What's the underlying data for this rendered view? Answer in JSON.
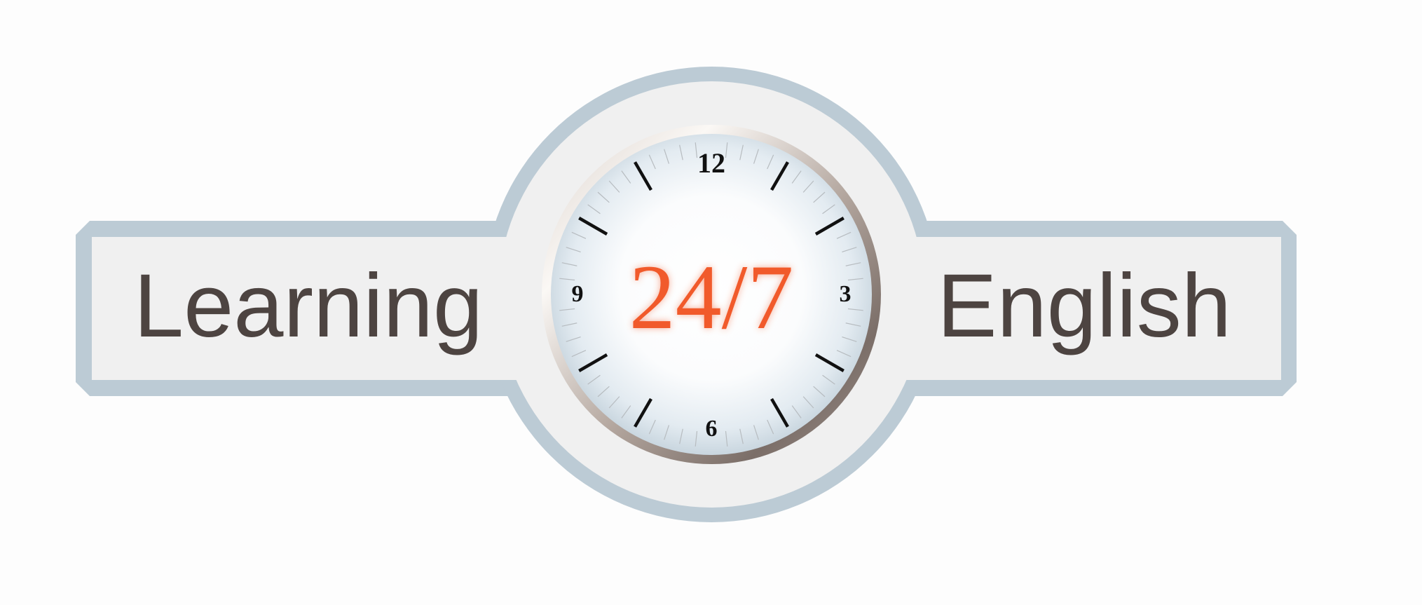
{
  "logo": {
    "left_word": "Learning",
    "right_word": "English",
    "center_text": "24/7",
    "clock_numerals": {
      "twelve": "12",
      "three": "3",
      "six": "6",
      "nine": "9"
    }
  },
  "colors": {
    "frame": "#bccbd5",
    "panel": "#f0f0f0",
    "word_text": "#4d4441",
    "accent": "#f15a2b",
    "numerals": "#111111",
    "dial_rim": "#7d706b"
  }
}
